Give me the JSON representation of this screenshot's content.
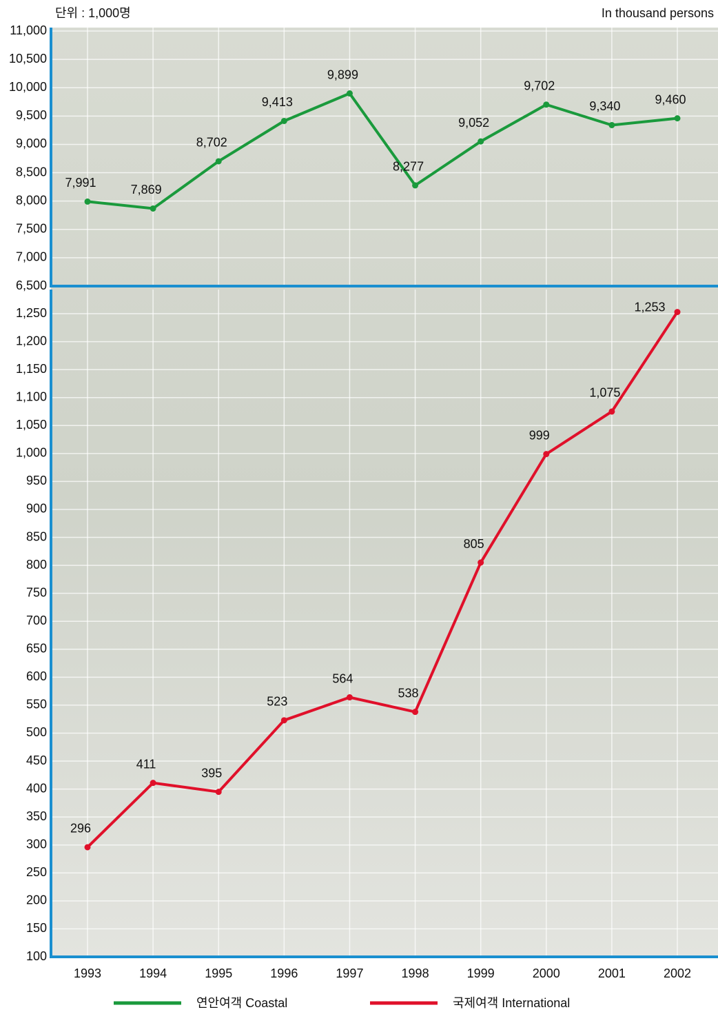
{
  "chart_data": [
    {
      "type": "line",
      "unit_label": "단위 : 1,000명",
      "unit_label_en": "In thousand persons",
      "series": [
        {
          "name": "연안여객 Coastal",
          "color": "#1a9a3c",
          "values": [
            7991,
            7869,
            8702,
            9413,
            9899,
            8277,
            9052,
            9702,
            9340,
            9460
          ],
          "value_labels": [
            "7,991",
            "7,869",
            "8,702",
            "9,413",
            "9,899",
            "8,277",
            "9,052",
            "9,702",
            "9,340",
            "9,460"
          ]
        }
      ],
      "ylim": [
        6500,
        11000
      ],
      "yticks": [
        {
          "value": 6500,
          "label": "6,500"
        },
        {
          "value": 7000,
          "label": "7,000"
        },
        {
          "value": 7500,
          "label": "7,500"
        },
        {
          "value": 8000,
          "label": "8,000"
        },
        {
          "value": 8500,
          "label": "8,500"
        },
        {
          "value": 9000,
          "label": "9,000"
        },
        {
          "value": 9500,
          "label": "9,500"
        },
        {
          "value": 10000,
          "label": "10,000"
        },
        {
          "value": 10500,
          "label": "10,500"
        },
        {
          "value": 11000,
          "label": "11,000"
        }
      ],
      "grid": true
    },
    {
      "type": "line",
      "categories": [
        "1993",
        "1994",
        "1995",
        "1996",
        "1997",
        "1998",
        "1999",
        "2000",
        "2001",
        "2002"
      ],
      "series": [
        {
          "name": "국제여객 International",
          "color": "#e0102a",
          "values": [
            296,
            411,
            395,
            523,
            564,
            538,
            805,
            999,
            1075,
            1253
          ],
          "value_labels": [
            "296",
            "411",
            "395",
            "523",
            "564",
            "538",
            "805",
            "999",
            "1,075",
            "1,253"
          ]
        }
      ],
      "ylim": [
        100,
        1250
      ],
      "yticks": [
        100,
        150,
        200,
        250,
        300,
        350,
        400,
        450,
        500,
        550,
        600,
        650,
        700,
        750,
        800,
        850,
        900,
        950,
        {
          "value": 1000,
          "label": "1,000"
        },
        {
          "value": 1050,
          "label": "1,050"
        },
        {
          "value": 1100,
          "label": "1,100"
        },
        {
          "value": 1150,
          "label": "1,150"
        },
        {
          "value": 1200,
          "label": "1,200"
        },
        {
          "value": 1250,
          "label": "1,250"
        }
      ],
      "grid": true
    }
  ]
}
